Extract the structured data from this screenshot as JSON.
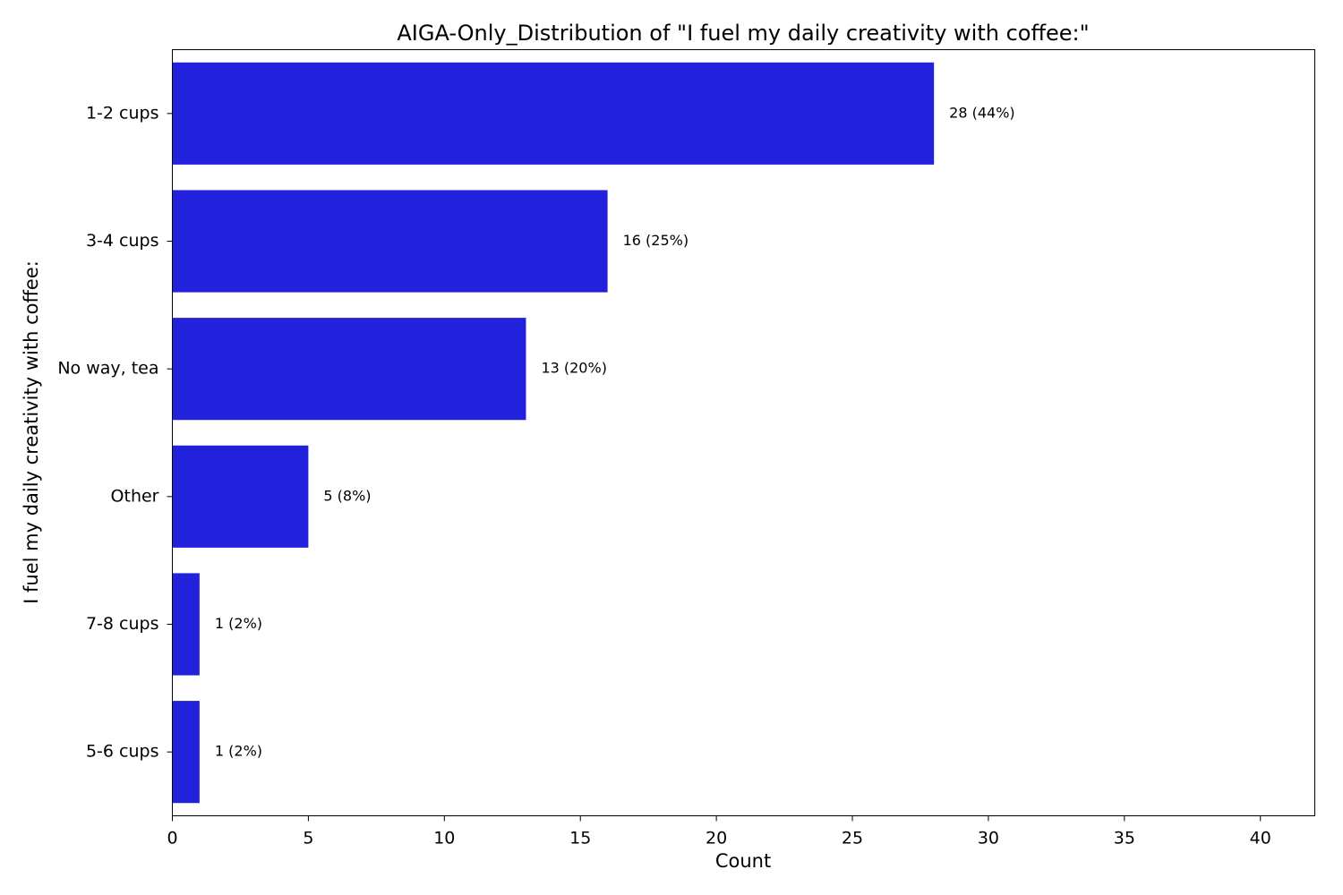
{
  "chart_data": {
    "type": "bar",
    "orientation": "horizontal",
    "title": "AIGA-Only_Distribution of \"I fuel my daily creativity with coffee:\"",
    "xlabel": "Count",
    "ylabel": "I fuel my daily creativity with coffee:",
    "categories": [
      "1-2 cups",
      "3-4 cups",
      "No way, tea",
      "Other",
      "7-8 cups",
      "5-6 cups"
    ],
    "values": [
      28,
      16,
      13,
      5,
      1,
      1
    ],
    "data_labels": [
      "28 (44%)",
      "16 (25%)",
      "13 (20%)",
      "5 (8%)",
      "1 (2%)",
      "1 (2%)"
    ],
    "xlim": [
      0,
      42
    ],
    "xticks": [
      0,
      5,
      10,
      15,
      20,
      25,
      30,
      35,
      40
    ],
    "grid": false,
    "bar_color": "#2222dd"
  }
}
